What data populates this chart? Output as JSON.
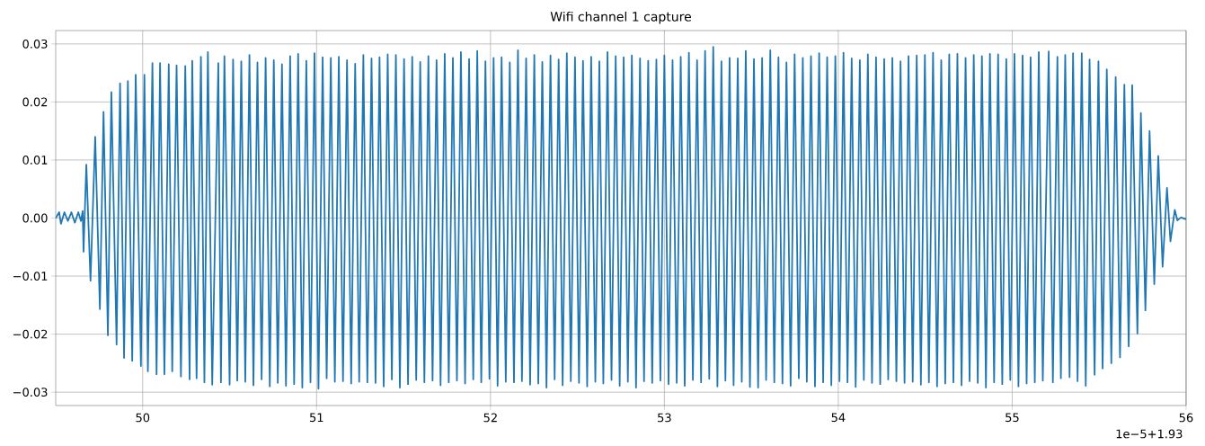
{
  "chart_data": {
    "type": "line",
    "title": "Wifi channel 1 capture",
    "annotations": [
      "1e−5+1.93"
    ],
    "color": "#1f77b4",
    "grid": true,
    "xlim": [
      49.5,
      56
    ],
    "xticks": [
      50,
      51,
      52,
      53,
      54,
      55,
      56
    ],
    "ylim": [
      -0.0323,
      0.0323
    ],
    "yticks": [
      {
        "value": -0.03,
        "label": "−0.03"
      },
      {
        "value": -0.02,
        "label": "−0.02"
      },
      {
        "value": -0.01,
        "label": "−0.01"
      },
      {
        "value": 0,
        "label": "0.00"
      },
      {
        "value": 0.01,
        "label": "0.01"
      },
      {
        "value": 0.02,
        "label": "0.02"
      },
      {
        "value": 0.03,
        "label": "0.03"
      }
    ],
    "x": [
      49.5,
      49.52,
      49.53,
      49.55,
      49.57,
      49.59,
      49.61,
      49.63,
      49.645,
      49.655,
      49.66,
      49.676,
      49.7,
      49.727,
      49.754,
      49.775,
      49.8,
      49.82,
      49.85,
      49.87,
      49.893,
      49.915,
      49.94,
      49.96,
      49.99,
      50.01,
      50.03,
      50.056,
      50.08,
      50.1,
      50.125,
      50.15,
      50.17,
      50.195,
      50.22,
      50.245,
      50.27,
      50.285,
      50.31,
      50.335,
      50.355,
      50.375,
      50.4,
      50.435,
      50.45,
      50.47,
      50.5,
      50.52,
      50.544,
      50.567,
      50.59,
      50.614,
      50.637,
      50.66,
      50.684,
      50.707,
      50.731,
      50.754,
      50.777,
      50.801,
      50.824,
      50.848,
      50.871,
      50.894,
      50.918,
      50.941,
      50.965,
      50.988,
      51.011,
      51.035,
      51.058,
      51.082,
      51.105,
      51.128,
      51.152,
      51.175,
      51.199,
      51.222,
      51.245,
      51.269,
      51.292,
      51.316,
      51.339,
      51.362,
      51.386,
      51.409,
      51.433,
      51.456,
      51.479,
      51.503,
      51.526,
      51.55,
      51.573,
      51.596,
      51.62,
      51.643,
      51.667,
      51.69,
      51.713,
      51.737,
      51.76,
      51.784,
      51.807,
      51.83,
      51.854,
      51.877,
      51.901,
      51.924,
      51.947,
      51.971,
      51.994,
      52.018,
      52.041,
      52.064,
      52.088,
      52.111,
      52.135,
      52.158,
      52.181,
      52.205,
      52.228,
      52.252,
      52.275,
      52.298,
      52.322,
      52.345,
      52.369,
      52.392,
      52.415,
      52.439,
      52.462,
      52.486,
      52.509,
      52.532,
      52.556,
      52.579,
      52.603,
      52.626,
      52.649,
      52.673,
      52.696,
      52.72,
      52.743,
      52.766,
      52.79,
      52.813,
      52.837,
      52.86,
      52.883,
      52.907,
      52.93,
      52.954,
      52.977,
      53.0,
      53.024,
      53.047,
      53.071,
      53.094,
      53.117,
      53.141,
      53.164,
      53.188,
      53.211,
      53.234,
      53.258,
      53.281,
      53.305,
      53.328,
      53.351,
      53.375,
      53.398,
      53.422,
      53.445,
      53.468,
      53.492,
      53.515,
      53.539,
      53.562,
      53.585,
      53.609,
      53.632,
      53.656,
      53.679,
      53.702,
      53.726,
      53.749,
      53.773,
      53.796,
      53.819,
      53.843,
      53.866,
      53.89,
      53.913,
      53.936,
      53.96,
      53.983,
      54.007,
      54.03,
      54.053,
      54.077,
      54.1,
      54.124,
      54.147,
      54.17,
      54.194,
      54.217,
      54.241,
      54.264,
      54.287,
      54.311,
      54.334,
      54.358,
      54.381,
      54.404,
      54.428,
      54.451,
      54.475,
      54.498,
      54.521,
      54.545,
      54.568,
      54.592,
      54.615,
      54.638,
      54.662,
      54.685,
      54.709,
      54.732,
      54.755,
      54.779,
      54.802,
      54.826,
      54.849,
      54.872,
      54.896,
      54.919,
      54.943,
      54.966,
      54.989,
      55.013,
      55.036,
      55.06,
      55.083,
      55.106,
      55.13,
      55.153,
      55.176,
      55.21,
      55.234,
      55.26,
      55.28,
      55.305,
      55.33,
      55.35,
      55.376,
      55.4,
      55.423,
      55.445,
      55.474,
      55.496,
      55.52,
      55.544,
      55.57,
      55.595,
      55.62,
      55.645,
      55.67,
      55.69,
      55.72,
      55.74,
      55.766,
      55.79,
      55.817,
      55.84,
      55.865,
      55.89,
      55.91,
      55.935,
      55.95,
      55.97,
      56.0
    ],
    "values": [
      0,
      0.001,
      -0.001,
      0.001,
      -0.0005,
      0.001,
      -0.0008,
      0.001,
      -0.0005,
      0.0012,
      -0.0058,
      0.0092,
      -0.0108,
      0.014,
      -0.0157,
      0.0183,
      -0.0202,
      0.0217,
      -0.0218,
      0.0232,
      -0.0241,
      0.0236,
      -0.0246,
      0.0247,
      -0.0255,
      0.0247,
      -0.0264,
      0.0267,
      -0.0269,
      0.0267,
      -0.0269,
      0.0265,
      -0.0264,
      0.0263,
      -0.0273,
      0.0262,
      -0.0278,
      0.0271,
      -0.0276,
      0.0278,
      -0.0283,
      0.0286,
      -0.0287,
      0.0267,
      -0.0283,
      0.0279,
      -0.0287,
      0.0273,
      -0.028,
      0.027,
      -0.0282,
      0.0281,
      -0.0288,
      0.0268,
      -0.0278,
      0.0276,
      -0.029,
      0.0272,
      -0.0284,
      0.0265,
      -0.0289,
      0.0279,
      -0.0286,
      0.0283,
      -0.0292,
      0.0271,
      -0.0283,
      0.0284,
      -0.0294,
      0.0277,
      -0.0276,
      0.0276,
      -0.0282,
      0.0278,
      -0.0281,
      0.0272,
      -0.0285,
      0.0266,
      -0.0282,
      0.0281,
      -0.0283,
      0.0275,
      -0.0284,
      0.0277,
      -0.029,
      0.0282,
      -0.0278,
      0.0281,
      -0.0292,
      0.0274,
      -0.0286,
      0.0278,
      -0.0279,
      0.0269,
      -0.0283,
      0.0279,
      -0.028,
      0.0272,
      -0.0288,
      0.0283,
      -0.0283,
      0.0276,
      -0.028,
      0.0286,
      -0.0285,
      0.0274,
      -0.0278,
      0.0288,
      -0.0283,
      0.027,
      -0.0277,
      0.0276,
      -0.0289,
      0.0277,
      -0.0282,
      0.0268,
      -0.0283,
      0.0289,
      -0.0281,
      0.0275,
      -0.0287,
      0.0281,
      -0.0285,
      0.0269,
      -0.0292,
      0.028,
      -0.0278,
      0.0273,
      -0.0288,
      0.0284,
      -0.0281,
      0.0277,
      -0.0284,
      0.0271,
      -0.029,
      0.0278,
      -0.0282,
      0.027,
      -0.0285,
      0.0286,
      -0.0279,
      0.0279,
      -0.0289,
      0.0277,
      -0.0282,
      0.028,
      -0.0292,
      0.0275,
      -0.0281,
      0.0271,
      -0.0284,
      0.0273,
      -0.028,
      0.028,
      -0.0286,
      0.0272,
      -0.0284,
      0.0278,
      -0.0289,
      0.0285,
      -0.0279,
      0.0272,
      -0.0283,
      0.0288,
      -0.0277,
      0.0295,
      -0.029,
      0.027,
      -0.028,
      0.0276,
      -0.0288,
      0.0275,
      -0.0282,
      0.0288,
      -0.0291,
      0.0274,
      -0.0292,
      0.0276,
      -0.0279,
      0.0289,
      -0.0283,
      0.0277,
      -0.0285,
      0.0268,
      -0.0289,
      0.0282,
      -0.0276,
      0.0276,
      -0.0282,
      0.0279,
      -0.029,
      0.0284,
      -0.0283,
      0.0277,
      -0.0288,
      0.0279,
      -0.0281,
      0.0285,
      -0.0283,
      0.0275,
      -0.0291,
      0.0272,
      -0.0279,
      0.0282,
      -0.0284,
      0.0277,
      -0.0286,
      0.0274,
      -0.0278,
      0.0276,
      -0.0281,
      0.027,
      -0.0284,
      0.0279,
      -0.0282,
      0.028,
      -0.0287,
      0.0281,
      -0.0283,
      0.0285,
      -0.029,
      0.0272,
      -0.0285,
      0.0282,
      -0.0283,
      0.0283,
      -0.0288,
      0.0276,
      -0.0281,
      0.0281,
      -0.0284,
      0.0279,
      -0.0292,
      0.0283,
      -0.0283,
      0.0282,
      -0.0286,
      0.0274,
      -0.0279,
      0.0283,
      -0.029,
      0.028,
      -0.0285,
      0.0277,
      -0.0283,
      0.0286,
      -0.028,
      0.0287,
      -0.0283,
      0.0278,
      -0.0276,
      0.0281,
      -0.0274,
      0.0284,
      -0.0281,
      0.0284,
      -0.0289,
      0.0273,
      -0.027,
      0.027,
      -0.0259,
      0.0256,
      -0.025,
      0.0243,
      -0.024,
      0.023,
      -0.0221,
      0.0229,
      -0.0199,
      0.0181,
      -0.0159,
      0.015,
      -0.0114,
      0.0107,
      -0.0084,
      0.0052,
      -0.004,
      0.0014,
      -0.0004,
      0.0001,
      -0.0002
    ]
  }
}
